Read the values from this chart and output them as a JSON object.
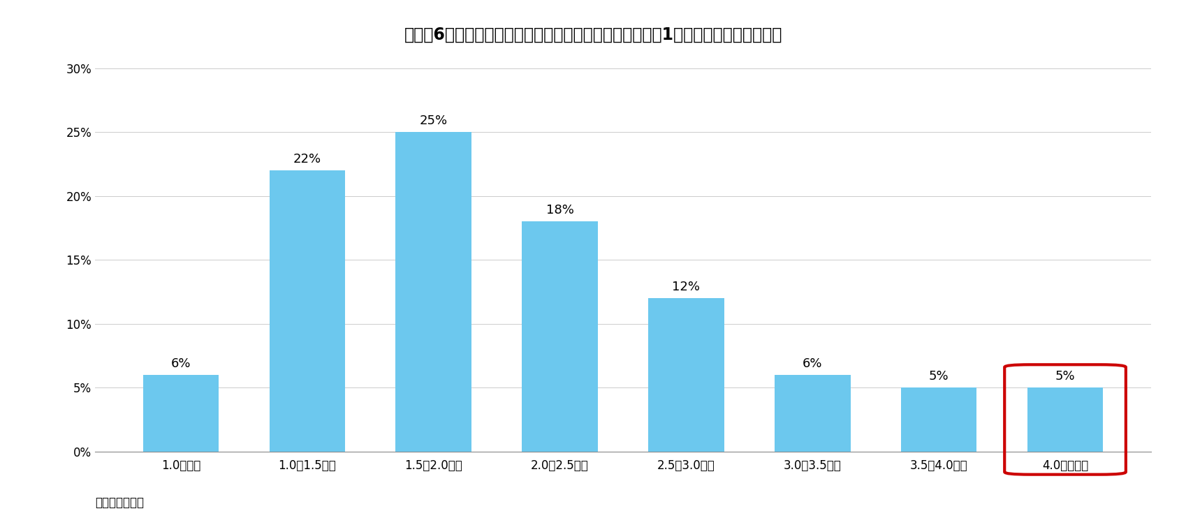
{
  "title": "図表－6　新規賃借する場合に妥当だと考える月額賃料（1坪当たり、共益費含む）",
  "categories": [
    "1.0万未満",
    "1.0〜1.5万円",
    "1.5〜2.0万円",
    "2.0〜2.5万円",
    "2.5〜3.0万円",
    "3.0〜3.5万円",
    "3.5〜4.0万円",
    "4.0万円以上"
  ],
  "values": [
    6,
    22,
    25,
    18,
    12,
    6,
    5,
    5
  ],
  "bar_color": "#6CC8EE",
  "ylim": [
    0,
    30
  ],
  "yticks": [
    0,
    5,
    10,
    15,
    20,
    25,
    30
  ],
  "ytick_labels": [
    "0%",
    "5%",
    "10%",
    "15%",
    "20%",
    "25%",
    "30%"
  ],
  "source": "（出所）森ビル",
  "title_fontsize": 17,
  "label_fontsize": 13,
  "tick_fontsize": 12,
  "source_fontsize": 12,
  "red_box_color": "#CC0000",
  "background_color": "#FFFFFF"
}
